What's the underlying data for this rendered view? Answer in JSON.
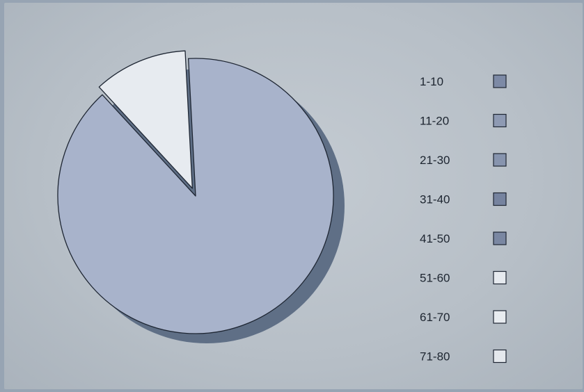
{
  "chart_data": {
    "type": "pie",
    "title": "",
    "legend_position": "right",
    "categories": [
      "1-10",
      "11-20",
      "21-30",
      "31-40",
      "41-50",
      "51-60",
      "61-70",
      "71-80"
    ],
    "values": [
      0,
      0,
      0,
      0,
      0,
      0,
      89,
      11
    ],
    "legend_colors": [
      "#7d8aa6",
      "#8e9ab3",
      "#8794ae",
      "#76839f",
      "#7a87a2",
      "#e6eaef",
      "#e8ecf0",
      "#e4e8ed"
    ],
    "slice_colors": [
      "#9faac4",
      "#9faac4",
      "#9faac4",
      "#9faac4",
      "#9faac4",
      "#9faac4",
      "#a8b3cb",
      "#e7ebf0"
    ]
  }
}
